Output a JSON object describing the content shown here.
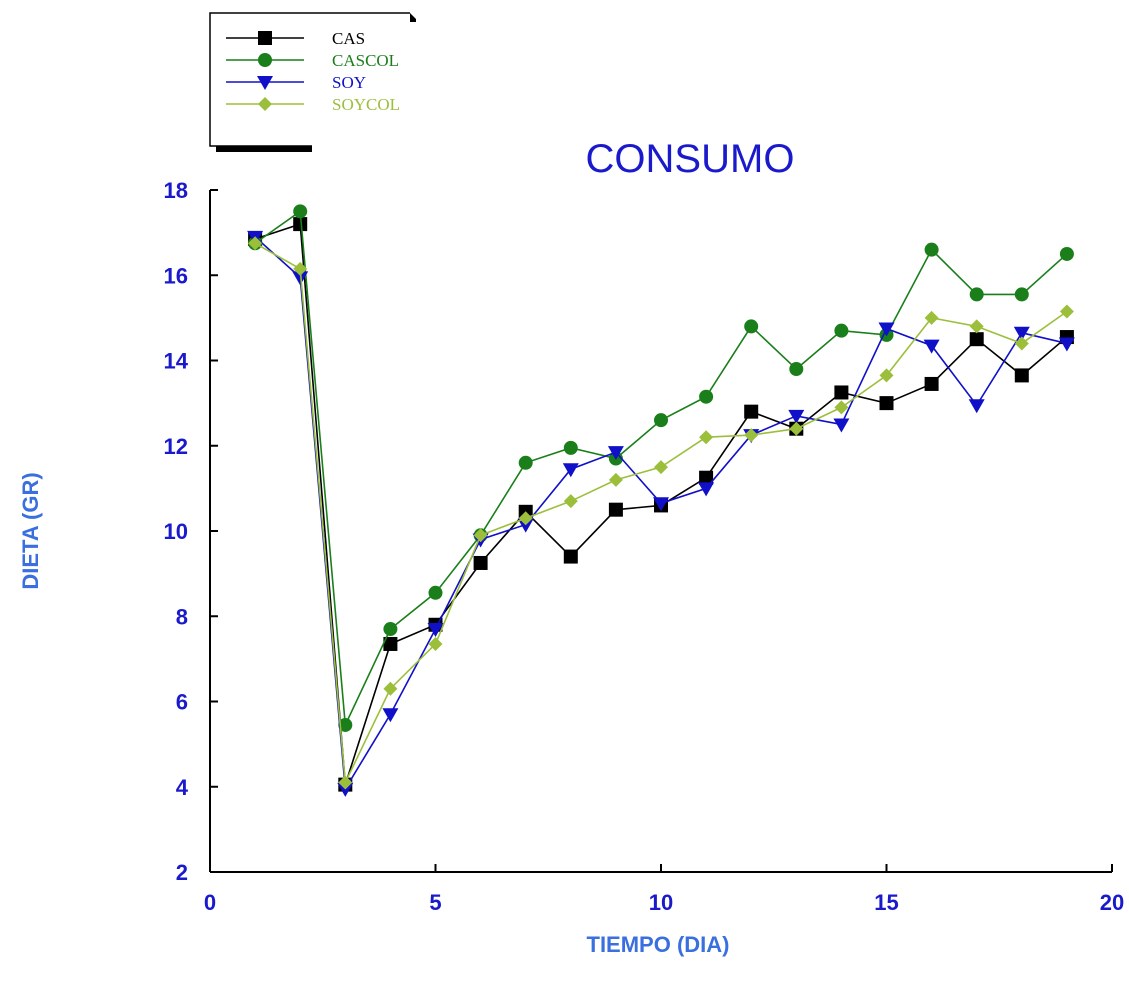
{
  "chart_data": {
    "type": "line",
    "title": "CONSUMO",
    "xlabel": "TIEMPO (DIA)",
    "ylabel": "DIETA (GR)",
    "xlim": [
      0,
      20
    ],
    "ylim": [
      2,
      18
    ],
    "x_ticks": [
      "0",
      "5",
      "10",
      "15",
      "20"
    ],
    "y_ticks": [
      "2",
      "4",
      "6",
      "8",
      "10",
      "12",
      "14",
      "16",
      "18"
    ],
    "grid": false,
    "legend_position": "top-left",
    "x": [
      1,
      2,
      3,
      4,
      5,
      6,
      7,
      8,
      9,
      10,
      11,
      12,
      13,
      14,
      15,
      16,
      17,
      18,
      19
    ],
    "series": [
      {
        "name": "CAS",
        "color": "#000000",
        "marker": "square",
        "values": [
          16.85,
          17.2,
          4.05,
          7.35,
          7.8,
          9.25,
          10.45,
          9.4,
          10.5,
          10.6,
          11.25,
          12.8,
          12.4,
          13.25,
          13.0,
          13.45,
          14.5,
          13.65,
          14.55
        ]
      },
      {
        "name": "CASCOL",
        "color": "#1a7f1a",
        "marker": "circle",
        "values": [
          16.75,
          17.5,
          5.45,
          7.7,
          8.55,
          9.9,
          11.6,
          11.95,
          11.7,
          12.6,
          13.15,
          14.8,
          13.8,
          14.7,
          14.6,
          16.6,
          15.55,
          15.55,
          16.5
        ]
      },
      {
        "name": "SOY",
        "color": "#1010c8",
        "marker": "triangle-down",
        "values": [
          16.9,
          15.95,
          3.95,
          5.7,
          7.7,
          9.8,
          10.15,
          11.45,
          11.85,
          10.65,
          11.0,
          12.25,
          12.7,
          12.5,
          14.75,
          14.35,
          12.95,
          14.65,
          14.4
        ]
      },
      {
        "name": "SOYCOL",
        "color": "#9cbf3b",
        "marker": "diamond",
        "values": [
          16.75,
          16.15,
          4.1,
          6.3,
          7.35,
          9.9,
          10.3,
          10.7,
          11.2,
          11.5,
          12.2,
          12.25,
          12.4,
          12.9,
          13.65,
          15.0,
          14.8,
          14.4,
          15.15
        ]
      }
    ],
    "colors": {
      "title": "#1a1acc",
      "axis_label": "#3a6fe0",
      "tick_label": "#1a1acc",
      "axis": "#000000"
    }
  }
}
